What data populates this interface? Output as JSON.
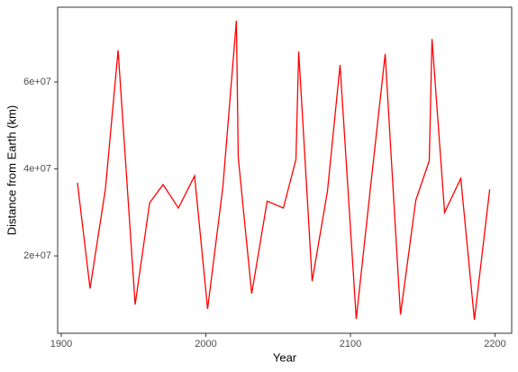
{
  "chart_data": {
    "type": "line",
    "x_label": "Year",
    "y_label": "Distance from Earth (km)",
    "x": [
      1911.2,
      1919.9,
      1930.5,
      1939.3,
      1951.1,
      1961.1,
      1970.4,
      1981.0,
      1992.2,
      2001.2,
      2011.8,
      2021.1,
      2022.4,
      2031.7,
      2042.4,
      2053.6,
      2062.3,
      2064.2,
      2073.5,
      2084.1,
      2092.8,
      2104.0,
      2114.0,
      2124.0,
      2134.6,
      2145.2,
      2154.5,
      2156.4,
      2165.1,
      2176.3,
      2185.7,
      2196.3
    ],
    "series": [
      {
        "color": "#ff0000",
        "values": [
          36800000,
          12500000,
          35300000,
          67300000,
          8800000,
          32200000,
          36400000,
          31000000,
          38400000,
          7800000,
          36000000,
          74100000,
          42600000,
          11300000,
          32600000,
          31000000,
          42200000,
          67000000,
          14200000,
          34900000,
          63900000,
          5500000,
          36200000,
          66400000,
          6500000,
          32800000,
          41900000,
          69900000,
          30000000,
          37800000,
          5300000,
          35300000
        ]
      }
    ],
    "xlim": [
      1897.5,
      2211.5
    ],
    "ylim": [
      2200000,
      77200000
    ],
    "xticks": [
      1900,
      2000,
      2100,
      2200
    ],
    "yticks": [
      {
        "value": 20000000,
        "label": "2e+07"
      },
      {
        "value": 40000000,
        "label": "4e+07"
      },
      {
        "value": 60000000,
        "label": "6e+07"
      }
    ]
  }
}
